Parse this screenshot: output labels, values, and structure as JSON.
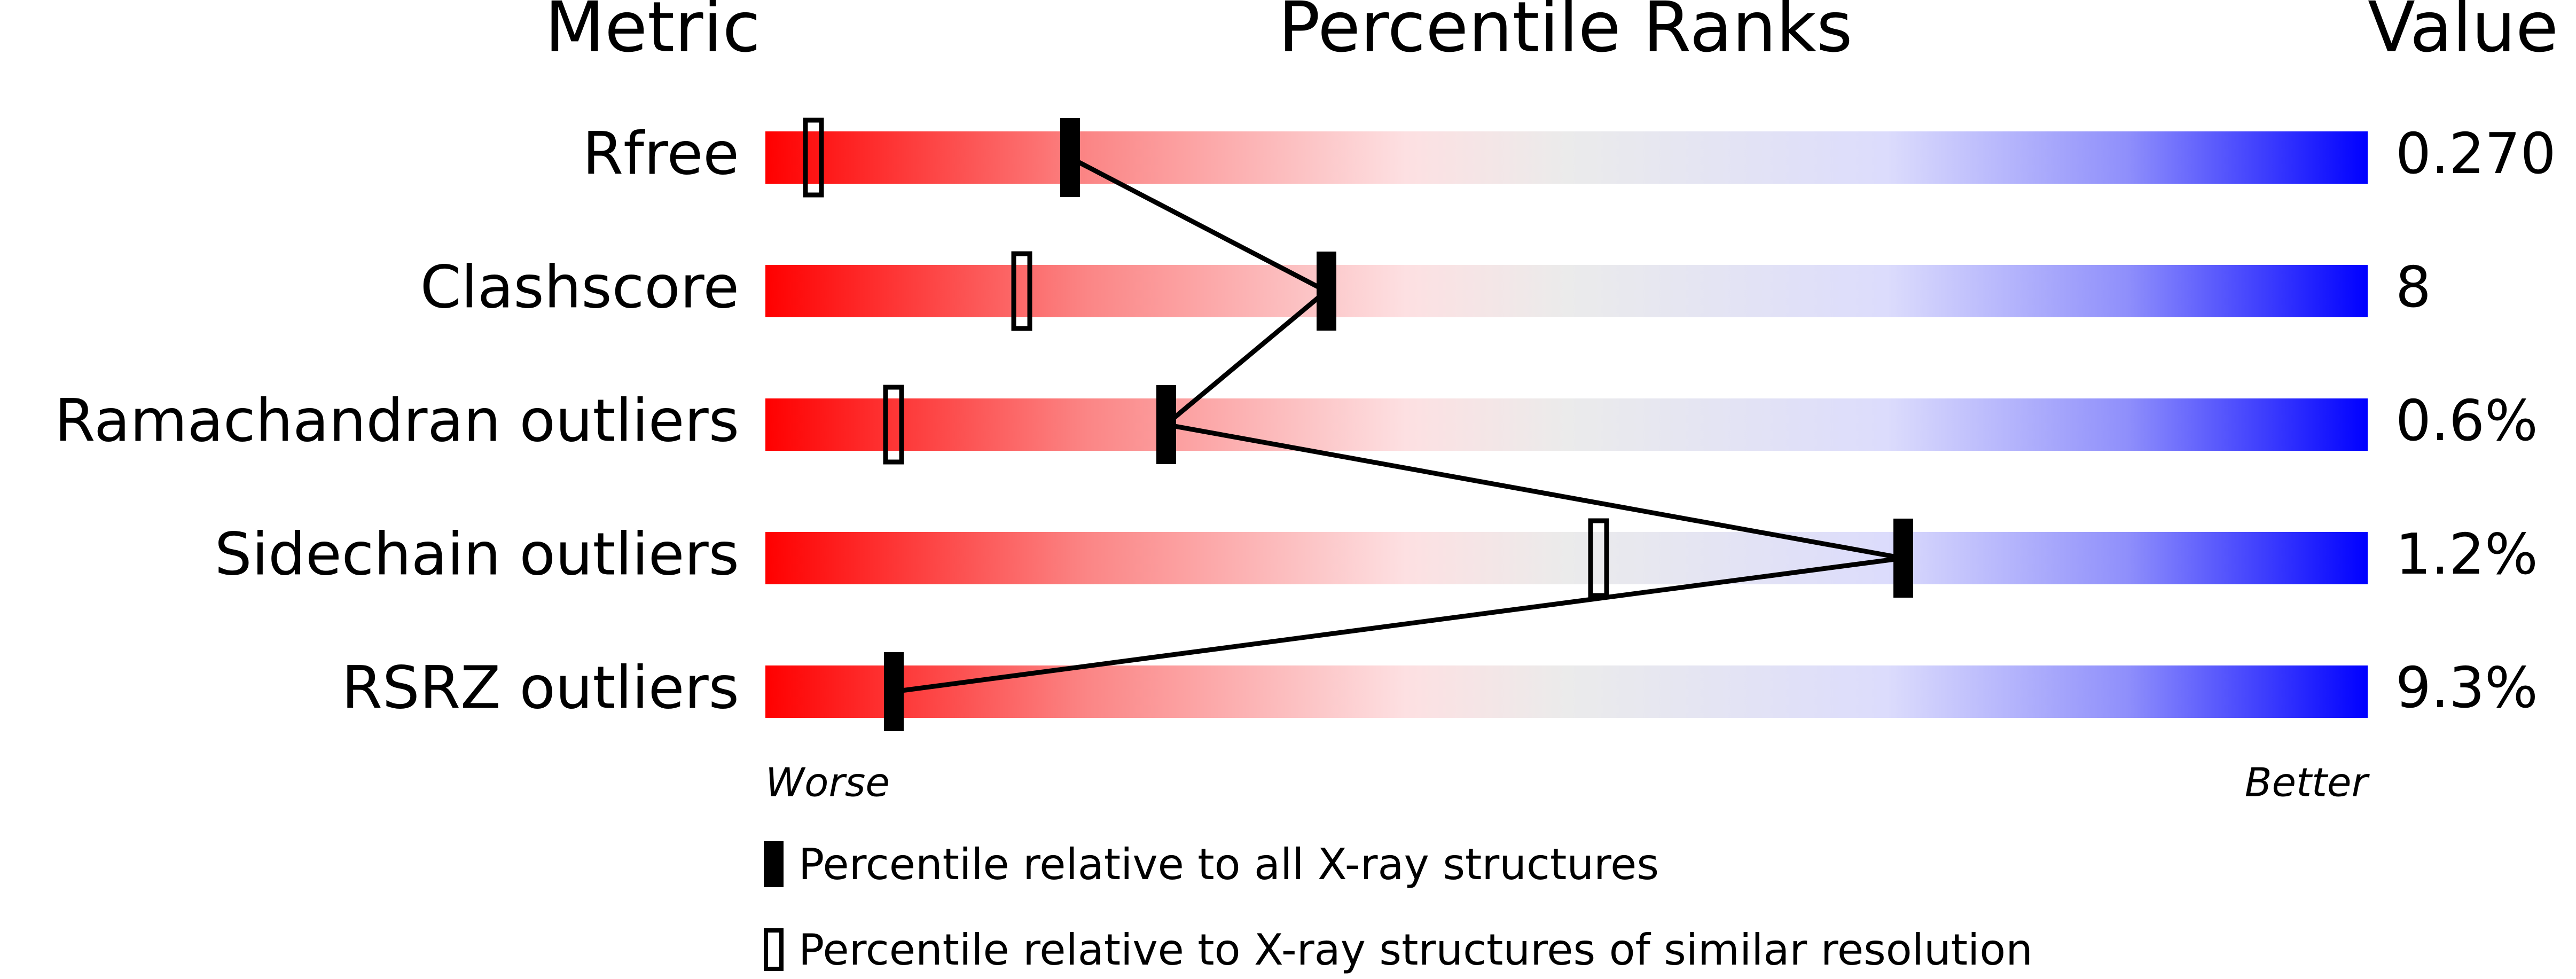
{
  "chart_data": {
    "type": "slider",
    "headers": [
      "Metric",
      "Percentile Ranks",
      "Value"
    ],
    "categories": [
      "Rfree",
      "Clashscore",
      "Ramachandran outliers",
      "Sidechain outliers",
      "RSRZ outliers"
    ],
    "metric_values": [
      "0.270",
      "8",
      "0.6%",
      "1.2%",
      "9.3%"
    ],
    "xlim": [
      0,
      100
    ],
    "worse_label": "Worse",
    "better_label": "Better",
    "series": [
      {
        "name": "Percentile relative to all X-ray structures",
        "color": "#000000",
        "style": "filled",
        "values": [
          19,
          35,
          25,
          71,
          8
        ]
      },
      {
        "name": "Percentile relative to X-ray structures of similar resolution",
        "color": "#000000",
        "style": "outline",
        "values": [
          3,
          16,
          8,
          52,
          null
        ]
      }
    ]
  }
}
